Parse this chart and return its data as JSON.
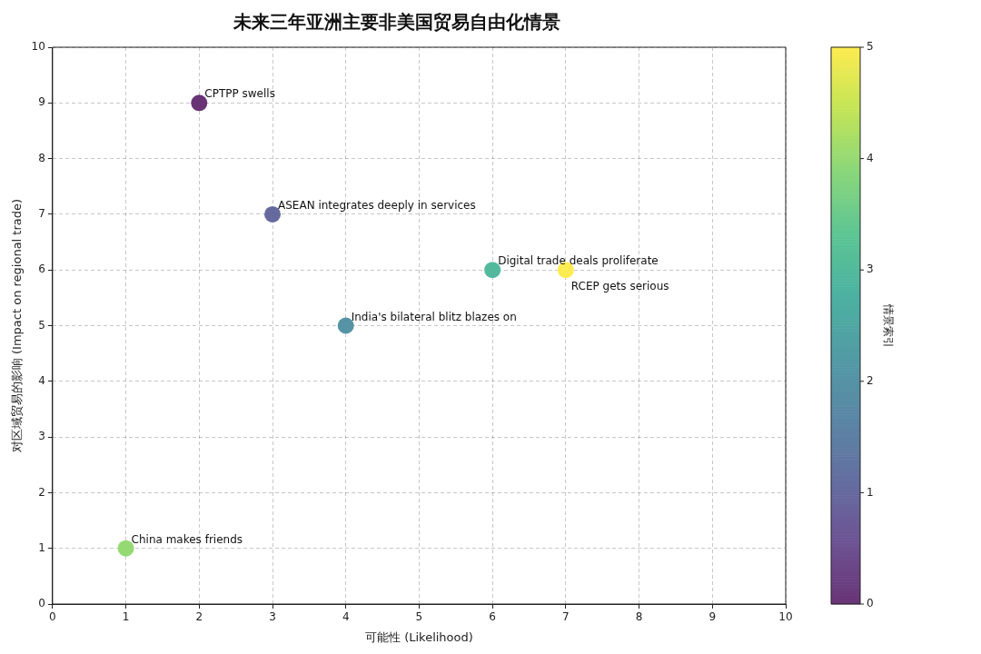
{
  "chart_data": {
    "type": "scatter",
    "title": "未来三年亚洲主要非美国贸易自由化情景",
    "xlabel": "可能性 (Likelihood)",
    "ylabel": "对区域贸易的影响 (Impact on regional trade)",
    "clabel": "情景索引",
    "x": [
      2,
      3,
      4,
      6,
      1,
      7
    ],
    "values": [
      9,
      7,
      5,
      6,
      1,
      6
    ],
    "cvalues": [
      0,
      1,
      2,
      3,
      4,
      5
    ],
    "clim": [
      0,
      5
    ],
    "cticks": [
      0,
      1,
      2,
      3,
      4,
      5
    ],
    "xlim": [
      0,
      10
    ],
    "xticks": [
      0,
      1,
      2,
      3,
      4,
      5,
      6,
      7,
      8,
      9,
      10
    ],
    "ylim": [
      0,
      10
    ],
    "yticks": [
      0,
      1,
      2,
      3,
      4,
      5,
      6,
      7,
      8,
      9,
      10
    ],
    "grid": true,
    "marker": "circle",
    "annotations": [
      {
        "text": "CPTPP swells",
        "x": 2,
        "y": 9
      },
      {
        "text": "ASEAN integrates deeply in services",
        "x": 3,
        "y": 7
      },
      {
        "text": "India's bilateral blitz blazes on",
        "x": 4,
        "y": 5
      },
      {
        "text": "Digital trade deals proliferate",
        "x": 6,
        "y": 6
      },
      {
        "text": "China makes friends",
        "x": 1,
        "y": 1
      },
      {
        "text": "RCEP gets serious",
        "x": 7,
        "y": 6
      }
    ]
  }
}
